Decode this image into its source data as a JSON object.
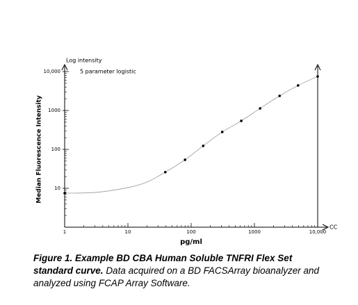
{
  "chart_data": {
    "type": "scatter",
    "annotations": [
      "Log intensity",
      "5 parameter logistic"
    ],
    "ylabel": "Median Fluorescence Intensity",
    "xlabel": "pg/ml",
    "x_axis_end_label": "CC",
    "log_x": true,
    "log_y": true,
    "xlim": [
      1,
      10000
    ],
    "ylim": [
      1,
      10000
    ],
    "xticks": [
      1,
      10,
      100,
      1000,
      {
        "value": 10000,
        "label": "10,000"
      }
    ],
    "yticks": [
      10,
      100,
      1000,
      {
        "value": 10000,
        "label": "10,000"
      }
    ],
    "series": [
      {
        "type": "scatter",
        "color": "#000000",
        "x": [
          1,
          39,
          80,
          155,
          310,
          620,
          1230,
          2500,
          4900,
          10000
        ],
        "values": [
          7.5,
          26,
          54,
          123,
          280,
          540,
          1130,
          2370,
          4400,
          7500
        ]
      },
      {
        "type": "line",
        "color": "#999999",
        "x": [
          1,
          3,
          10,
          20,
          39,
          80,
          155,
          310,
          620,
          1230,
          2500,
          4900,
          10000
        ],
        "values": [
          7.5,
          7.8,
          10.4,
          14.5,
          26,
          54,
          123,
          280,
          540,
          1130,
          2370,
          4400,
          7500
        ]
      }
    ],
    "caption_bold": "Figure 1. Example BD CBA Human Soluble TNFRI Flex Set standard curve.",
    "caption_text": "Data acquired on a BD FACSArray bioanalyzer and analyzed using FCAP Array Software."
  }
}
